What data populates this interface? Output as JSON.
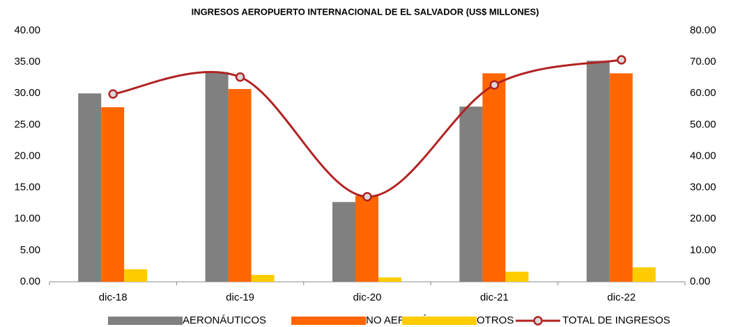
{
  "chart_data": {
    "type": "bar",
    "title": "INGRESOS AEROPUERTO INTERNACIONAL DE EL SALVADOR (US$ MILLONES)",
    "categories": [
      "dic-18",
      "dic-19",
      "dic-20",
      "dic-21",
      "dic-22"
    ],
    "series": [
      {
        "name": "AERONÁUTICOS",
        "color": "#808080",
        "values": [
          30.0,
          33.4,
          12.7,
          27.9,
          35.2
        ]
      },
      {
        "name": "NO AERONÁUTICOS",
        "color": "#ff6600",
        "values": [
          27.8,
          30.7,
          13.7,
          33.2,
          33.2
        ]
      },
      {
        "name": "OTROS",
        "color": "#ffcc00",
        "values": [
          2.0,
          1.1,
          0.7,
          1.6,
          2.3
        ]
      },
      {
        "name": "TOTAL DE INGRESOS",
        "color": "#b22222",
        "type": "line",
        "axis": "y2",
        "smooth": true,
        "values": [
          59.8,
          65.2,
          27.1,
          62.7,
          70.7
        ]
      }
    ],
    "ylim": [
      0,
      40
    ],
    "yticks": [
      {
        "value": 0,
        "label": "0.00"
      },
      {
        "value": 5,
        "label": "5.00"
      },
      {
        "value": 10,
        "label": "10.00"
      },
      {
        "value": 15,
        "label": "15.00"
      },
      {
        "value": 20,
        "label": "20.00"
      },
      {
        "value": 25,
        "label": "25.00"
      },
      {
        "value": 30,
        "label": "30.00"
      },
      {
        "value": 35,
        "label": "35.00"
      },
      {
        "value": 40,
        "label": "40.00"
      }
    ],
    "y2lim": [
      0,
      80
    ],
    "y2ticks": [
      {
        "value": 0,
        "label": "0.00"
      },
      {
        "value": 10,
        "label": "10.00"
      },
      {
        "value": 20,
        "label": "20.00"
      },
      {
        "value": 30,
        "label": "30.00"
      },
      {
        "value": 40,
        "label": "40.00"
      },
      {
        "value": 50,
        "label": "50.00"
      },
      {
        "value": 60,
        "label": "60.00"
      },
      {
        "value": 70,
        "label": "70.00"
      },
      {
        "value": 80,
        "label": "80.00"
      }
    ],
    "grid": false,
    "legend": "bottom"
  }
}
